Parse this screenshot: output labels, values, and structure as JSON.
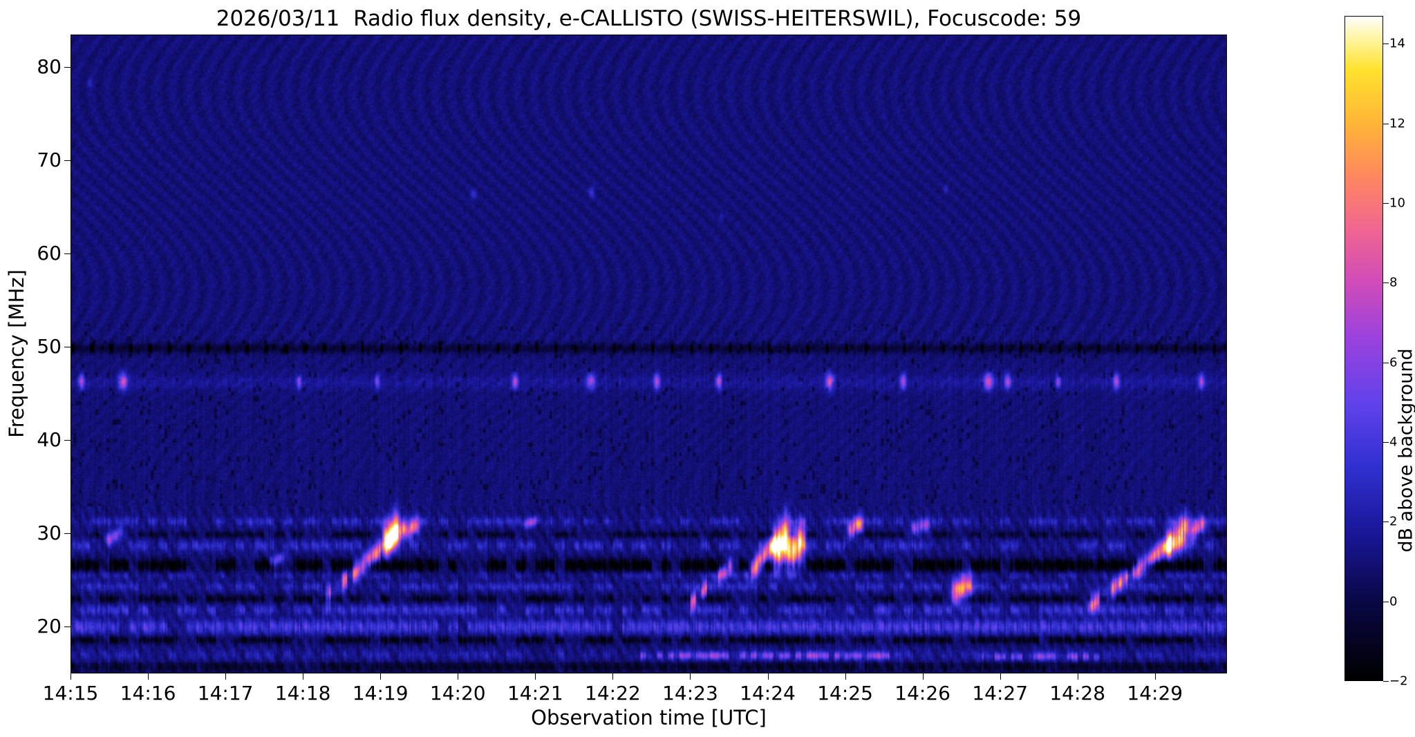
{
  "chart_data": {
    "type": "heatmap",
    "title": "2026/03/11  Radio flux density, e-CALLISTO (SWISS-HEITERSWIL), Focuscode: 59",
    "xlabel": "Observation time [UTC]",
    "ylabel": "Frequency [MHz]",
    "x_range_minutes": [
      0,
      14.93
    ],
    "x_start_label": "14:15",
    "y_range_mhz": [
      15.0,
      83.5
    ],
    "x_tick_labels": [
      "14:15",
      "14:16",
      "14:17",
      "14:18",
      "14:19",
      "14:20",
      "14:21",
      "14:22",
      "14:23",
      "14:24",
      "14:25",
      "14:26",
      "14:27",
      "14:28",
      "14:29"
    ],
    "y_tick_values": [
      80,
      70,
      60,
      50,
      40,
      30,
      20
    ],
    "y_tick_labels": [
      "80",
      "70",
      "60",
      "50",
      "40",
      "30",
      "20"
    ],
    "colorbar": {
      "label": "dB above background",
      "vmin": -2,
      "vmax": 14.7,
      "tick_values": [
        14,
        12,
        10,
        8,
        6,
        4,
        2,
        0,
        -2
      ],
      "tick_labels": [
        "14",
        "12",
        "10",
        "8",
        "6",
        "4",
        "2",
        "0",
        "−2"
      ],
      "stops": [
        [
          0.0,
          0,
          0,
          0
        ],
        [
          0.12,
          10,
          8,
          70
        ],
        [
          0.22,
          25,
          22,
          150
        ],
        [
          0.32,
          48,
          48,
          208
        ],
        [
          0.42,
          98,
          66,
          235
        ],
        [
          0.52,
          158,
          66,
          220
        ],
        [
          0.6,
          208,
          76,
          185
        ],
        [
          0.68,
          240,
          102,
          145
        ],
        [
          0.76,
          255,
          136,
          95
        ],
        [
          0.84,
          255,
          182,
          55
        ],
        [
          0.92,
          255,
          226,
          45
        ],
        [
          0.97,
          255,
          246,
          170
        ],
        [
          1.0,
          255,
          255,
          255
        ]
      ]
    },
    "background_level_db": 1.0,
    "rfi_line_mhz": 49.85,
    "bands": [
      {
        "f": 46.2,
        "hw": 0.8,
        "v": 0.7,
        "duty": 1.0
      },
      {
        "f": 31.3,
        "hw": 0.45,
        "v": 1.7,
        "duty": 0.55
      },
      {
        "f": 29.9,
        "hw": 0.35,
        "v": -1.6,
        "duty": 0.5
      },
      {
        "f": 28.7,
        "hw": 0.55,
        "v": 1.9,
        "duty": 0.6
      },
      {
        "f": 26.6,
        "hw": 0.65,
        "v": -3.2,
        "duty": 0.8
      },
      {
        "f": 25.5,
        "hw": 0.4,
        "v": 1.3,
        "duty": 0.5
      },
      {
        "f": 24.3,
        "hw": 0.45,
        "v": 1.7,
        "duty": 0.55
      },
      {
        "f": 23.0,
        "hw": 0.4,
        "v": -2.0,
        "duty": 0.55
      },
      {
        "f": 21.8,
        "hw": 0.55,
        "v": 2.1,
        "duty": 0.65
      },
      {
        "f": 20.0,
        "hw": 0.75,
        "v": 2.7,
        "duty": 0.95
      },
      {
        "f": 18.6,
        "hw": 0.4,
        "v": -2.2,
        "duty": 0.65
      },
      {
        "f": 17.0,
        "hw": 0.55,
        "v": 1.2,
        "duty": 0.6
      },
      {
        "f": 15.7,
        "hw": 0.5,
        "v": -1.2,
        "duty": 0.8
      }
    ],
    "bursts": [
      {
        "t0": 3.35,
        "t1": 4.3,
        "f0": 23.5,
        "f1": 30.5,
        "hw": 1.0,
        "v": 8.0,
        "duty": 0.7
      },
      {
        "t0": 4.08,
        "t1": 4.2,
        "f0": 29.3,
        "f1": 30.6,
        "hw": 1.7,
        "v": 11.0,
        "duty": 1
      },
      {
        "t0": 4.38,
        "t1": 4.46,
        "f0": 30.4,
        "f1": 30.9,
        "hw": 1.0,
        "v": 8.5,
        "duty": 1
      },
      {
        "t0": 8.0,
        "t1": 8.5,
        "f0": 22.5,
        "f1": 26.5,
        "hw": 0.9,
        "v": 6.5,
        "duty": 0.7
      },
      {
        "t0": 8.75,
        "t1": 9.1,
        "f0": 25.5,
        "f1": 29.0,
        "hw": 1.1,
        "v": 9.0,
        "duty": 0.85
      },
      {
        "t0": 9.12,
        "t1": 9.24,
        "f0": 28.3,
        "f1": 29.5,
        "hw": 2.3,
        "v": 13.0,
        "duty": 1
      },
      {
        "t0": 9.3,
        "t1": 9.44,
        "f0": 27.8,
        "f1": 29.2,
        "hw": 1.9,
        "v": 11.0,
        "duty": 1
      },
      {
        "t0": 10.08,
        "t1": 10.18,
        "f0": 30.4,
        "f1": 31.0,
        "hw": 0.9,
        "v": 8.0,
        "duty": 1
      },
      {
        "t0": 11.42,
        "t1": 11.6,
        "f0": 23.7,
        "f1": 24.5,
        "hw": 1.3,
        "v": 8.5,
        "duty": 1
      },
      {
        "t0": 13.2,
        "t1": 14.3,
        "f0": 22.5,
        "f1": 29.5,
        "hw": 0.9,
        "v": 8.0,
        "duty": 0.7
      },
      {
        "t0": 14.18,
        "t1": 14.4,
        "f0": 28.8,
        "f1": 30.4,
        "hw": 1.5,
        "v": 10.5,
        "duty": 1
      },
      {
        "t0": 14.5,
        "t1": 14.6,
        "f0": 30.2,
        "f1": 30.9,
        "hw": 0.9,
        "v": 8.0,
        "duty": 1
      },
      {
        "t0": 7.3,
        "t1": 10.6,
        "f0": 16.9,
        "f1": 16.9,
        "hw": 0.4,
        "v": 4.2,
        "duty": 0.55
      },
      {
        "t0": 11.8,
        "t1": 13.3,
        "f0": 16.8,
        "f1": 16.8,
        "hw": 0.4,
        "v": 4.0,
        "duty": 0.5
      },
      {
        "t0": 0.5,
        "t1": 0.62,
        "f0": 29.4,
        "f1": 30.0,
        "hw": 0.7,
        "v": 5.0,
        "duty": 1
      },
      {
        "t0": 2.62,
        "t1": 2.72,
        "f0": 27.0,
        "f1": 27.4,
        "hw": 0.6,
        "v": 4.0,
        "duty": 1
      },
      {
        "t0": 5.9,
        "t1": 6.0,
        "f0": 31.0,
        "f1": 31.4,
        "hw": 0.5,
        "v": 4.5,
        "duty": 1
      },
      {
        "t0": 10.9,
        "t1": 11.05,
        "f0": 30.6,
        "f1": 31.0,
        "hw": 0.7,
        "v": 5.0,
        "duty": 1
      }
    ],
    "spots": [
      {
        "t": 0.14,
        "f": 46.3,
        "v": 6.0,
        "w": 0.035,
        "hw": 0.8
      },
      {
        "t": 0.68,
        "f": 46.3,
        "v": 7.0,
        "w": 0.05,
        "hw": 0.9
      },
      {
        "t": 2.95,
        "f": 46.3,
        "v": 5.0,
        "w": 0.03,
        "hw": 0.7
      },
      {
        "t": 3.96,
        "f": 46.3,
        "v": 5.0,
        "w": 0.03,
        "hw": 0.7
      },
      {
        "t": 5.74,
        "f": 46.3,
        "v": 6.5,
        "w": 0.035,
        "hw": 0.8
      },
      {
        "t": 6.72,
        "f": 46.3,
        "v": 6.0,
        "w": 0.05,
        "hw": 0.8
      },
      {
        "t": 7.57,
        "f": 46.3,
        "v": 6.0,
        "w": 0.04,
        "hw": 0.8
      },
      {
        "t": 8.37,
        "f": 46.3,
        "v": 6.5,
        "w": 0.035,
        "hw": 0.8
      },
      {
        "t": 9.8,
        "f": 46.3,
        "v": 7.0,
        "w": 0.05,
        "hw": 0.9
      },
      {
        "t": 10.75,
        "f": 46.3,
        "v": 6.0,
        "w": 0.035,
        "hw": 0.8
      },
      {
        "t": 11.85,
        "f": 46.3,
        "v": 7.0,
        "w": 0.06,
        "hw": 0.9
      },
      {
        "t": 12.1,
        "f": 46.3,
        "v": 6.0,
        "w": 0.04,
        "hw": 0.8
      },
      {
        "t": 12.75,
        "f": 46.3,
        "v": 5.0,
        "w": 0.03,
        "hw": 0.7
      },
      {
        "t": 13.5,
        "f": 46.3,
        "v": 6.0,
        "w": 0.04,
        "hw": 0.8
      },
      {
        "t": 14.6,
        "f": 46.3,
        "v": 6.0,
        "w": 0.035,
        "hw": 0.8
      },
      {
        "t": 5.2,
        "f": 66.3,
        "v": 2.2,
        "w": 0.04,
        "hw": 0.6
      },
      {
        "t": 6.73,
        "f": 66.6,
        "v": 2.4,
        "w": 0.04,
        "hw": 0.6
      },
      {
        "t": 8.4,
        "f": 63.9,
        "v": 1.8,
        "w": 0.03,
        "hw": 0.5
      },
      {
        "t": 0.25,
        "f": 78.3,
        "v": 1.6,
        "w": 0.03,
        "hw": 0.5
      },
      {
        "t": 11.3,
        "f": 66.9,
        "v": 1.5,
        "w": 0.03,
        "hw": 0.5
      }
    ]
  }
}
